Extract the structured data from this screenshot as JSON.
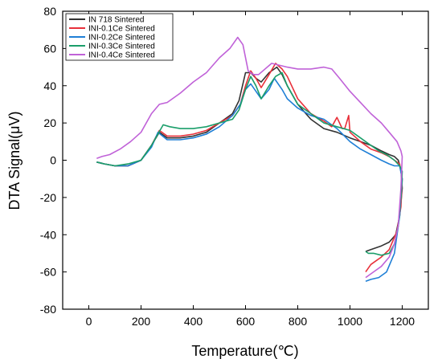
{
  "chart_data": {
    "type": "line",
    "title": "",
    "xlabel": "Temperature(℃)",
    "ylabel": "DTA Signal(μV)",
    "xlim": [
      -100,
      1300
    ],
    "ylim": [
      -80,
      80
    ],
    "xticks": [
      0,
      200,
      400,
      600,
      800,
      1000,
      1200
    ],
    "yticks": [
      -80,
      -60,
      -40,
      -20,
      0,
      20,
      40,
      60,
      80
    ],
    "grid": false,
    "legend_position": "top-left",
    "series": [
      {
        "name": "IN 718 Sintered",
        "color": "#333333",
        "points": [
          [
            30,
            -1
          ],
          [
            60,
            -2
          ],
          [
            100,
            -3
          ],
          [
            150,
            -3
          ],
          [
            200,
            0
          ],
          [
            240,
            8
          ],
          [
            270,
            15
          ],
          [
            300,
            12
          ],
          [
            350,
            12
          ],
          [
            400,
            13
          ],
          [
            450,
            15
          ],
          [
            500,
            20
          ],
          [
            550,
            25
          ],
          [
            575,
            32
          ],
          [
            600,
            47
          ],
          [
            620,
            47
          ],
          [
            640,
            44
          ],
          [
            660,
            42
          ],
          [
            690,
            47
          ],
          [
            720,
            50
          ],
          [
            740,
            46
          ],
          [
            760,
            40
          ],
          [
            800,
            30
          ],
          [
            850,
            22
          ],
          [
            900,
            17
          ],
          [
            950,
            15
          ],
          [
            1000,
            12
          ],
          [
            1040,
            10
          ],
          [
            1080,
            8
          ],
          [
            1120,
            5
          ],
          [
            1150,
            3
          ],
          [
            1170,
            2
          ],
          [
            1185,
            0
          ],
          [
            1195,
            -5
          ],
          [
            1200,
            -15
          ],
          [
            1190,
            -30
          ],
          [
            1175,
            -40
          ],
          [
            1150,
            -44
          ],
          [
            1120,
            -46
          ],
          [
            1100,
            -47
          ],
          [
            1080,
            -48
          ],
          [
            1060,
            -49
          ]
        ]
      },
      {
        "name": "INI-0.1Ce Sintered",
        "color": "#e8303a",
        "points": [
          [
            30,
            -1
          ],
          [
            60,
            -2
          ],
          [
            100,
            -3
          ],
          [
            150,
            -3
          ],
          [
            200,
            0
          ],
          [
            240,
            8
          ],
          [
            270,
            16
          ],
          [
            300,
            13
          ],
          [
            350,
            13
          ],
          [
            400,
            14
          ],
          [
            450,
            16
          ],
          [
            500,
            20
          ],
          [
            550,
            24
          ],
          [
            580,
            30
          ],
          [
            600,
            40
          ],
          [
            620,
            48
          ],
          [
            640,
            44
          ],
          [
            660,
            39
          ],
          [
            690,
            46
          ],
          [
            715,
            52
          ],
          [
            740,
            49
          ],
          [
            760,
            45
          ],
          [
            800,
            33
          ],
          [
            850,
            25
          ],
          [
            900,
            21
          ],
          [
            930,
            18
          ],
          [
            950,
            23
          ],
          [
            970,
            17
          ],
          [
            980,
            17
          ],
          [
            995,
            24
          ],
          [
            1000,
            15
          ],
          [
            1040,
            10
          ],
          [
            1080,
            6
          ],
          [
            1120,
            4
          ],
          [
            1150,
            2
          ],
          [
            1170,
            0
          ],
          [
            1190,
            -2
          ],
          [
            1200,
            -10
          ],
          [
            1195,
            -25
          ],
          [
            1180,
            -38
          ],
          [
            1150,
            -48
          ],
          [
            1120,
            -52
          ],
          [
            1100,
            -54
          ],
          [
            1080,
            -56
          ],
          [
            1060,
            -60
          ]
        ]
      },
      {
        "name": "INI-0.2Ce Sintered",
        "color": "#1f7fd6",
        "points": [
          [
            30,
            -1
          ],
          [
            60,
            -2
          ],
          [
            100,
            -3
          ],
          [
            150,
            -3
          ],
          [
            200,
            0
          ],
          [
            240,
            7
          ],
          [
            265,
            15
          ],
          [
            300,
            11
          ],
          [
            350,
            11
          ],
          [
            400,
            12
          ],
          [
            450,
            14
          ],
          [
            500,
            18
          ],
          [
            550,
            24
          ],
          [
            580,
            30
          ],
          [
            600,
            38
          ],
          [
            620,
            41
          ],
          [
            640,
            37
          ],
          [
            660,
            33
          ],
          [
            690,
            38
          ],
          [
            710,
            44
          ],
          [
            740,
            38
          ],
          [
            760,
            33
          ],
          [
            800,
            28
          ],
          [
            850,
            24
          ],
          [
            900,
            22
          ],
          [
            950,
            17
          ],
          [
            1000,
            10
          ],
          [
            1040,
            6
          ],
          [
            1080,
            3
          ],
          [
            1120,
            0
          ],
          [
            1150,
            -2
          ],
          [
            1170,
            -3
          ],
          [
            1190,
            -3
          ],
          [
            1200,
            -10
          ],
          [
            1190,
            -30
          ],
          [
            1170,
            -50
          ],
          [
            1140,
            -60
          ],
          [
            1110,
            -63
          ],
          [
            1080,
            -64
          ],
          [
            1060,
            -65
          ]
        ]
      },
      {
        "name": "INI-0.3Ce Sintered",
        "color": "#1a9e6a",
        "points": [
          [
            30,
            -1
          ],
          [
            60,
            -2
          ],
          [
            100,
            -3
          ],
          [
            150,
            -2
          ],
          [
            200,
            0
          ],
          [
            240,
            8
          ],
          [
            285,
            19
          ],
          [
            310,
            18
          ],
          [
            350,
            17
          ],
          [
            400,
            17
          ],
          [
            450,
            18
          ],
          [
            500,
            20
          ],
          [
            550,
            22
          ],
          [
            575,
            27
          ],
          [
            600,
            38
          ],
          [
            620,
            45
          ],
          [
            640,
            40
          ],
          [
            660,
            33
          ],
          [
            690,
            40
          ],
          [
            715,
            45
          ],
          [
            740,
            47
          ],
          [
            760,
            40
          ],
          [
            800,
            30
          ],
          [
            850,
            25
          ],
          [
            900,
            20
          ],
          [
            950,
            18
          ],
          [
            1000,
            16
          ],
          [
            1040,
            12
          ],
          [
            1080,
            8
          ],
          [
            1110,
            5
          ],
          [
            1140,
            3
          ],
          [
            1170,
            0
          ],
          [
            1190,
            -3
          ],
          [
            1200,
            -6
          ],
          [
            1195,
            -20
          ],
          [
            1185,
            -35
          ],
          [
            1170,
            -45
          ],
          [
            1150,
            -50
          ],
          [
            1120,
            -51
          ],
          [
            1090,
            -50
          ],
          [
            1070,
            -50
          ],
          [
            1060,
            -49
          ]
        ]
      },
      {
        "name": "INI-0.4Ce Sintered",
        "color": "#c062d8",
        "points": [
          [
            30,
            1
          ],
          [
            50,
            2
          ],
          [
            80,
            3
          ],
          [
            120,
            6
          ],
          [
            160,
            10
          ],
          [
            200,
            15
          ],
          [
            240,
            25
          ],
          [
            270,
            30
          ],
          [
            300,
            31
          ],
          [
            350,
            36
          ],
          [
            400,
            42
          ],
          [
            450,
            47
          ],
          [
            500,
            55
          ],
          [
            540,
            60
          ],
          [
            570,
            66
          ],
          [
            590,
            62
          ],
          [
            610,
            48
          ],
          [
            630,
            46
          ],
          [
            650,
            46
          ],
          [
            700,
            52
          ],
          [
            760,
            50
          ],
          [
            800,
            49
          ],
          [
            850,
            49
          ],
          [
            900,
            50
          ],
          [
            930,
            49
          ],
          [
            960,
            44
          ],
          [
            1000,
            37
          ],
          [
            1040,
            31
          ],
          [
            1080,
            25
          ],
          [
            1120,
            20
          ],
          [
            1150,
            15
          ],
          [
            1180,
            10
          ],
          [
            1195,
            5
          ],
          [
            1200,
            2
          ],
          [
            1195,
            -15
          ],
          [
            1185,
            -35
          ],
          [
            1170,
            -45
          ],
          [
            1150,
            -52
          ],
          [
            1120,
            -57
          ],
          [
            1090,
            -60
          ],
          [
            1060,
            -63
          ]
        ]
      }
    ]
  }
}
